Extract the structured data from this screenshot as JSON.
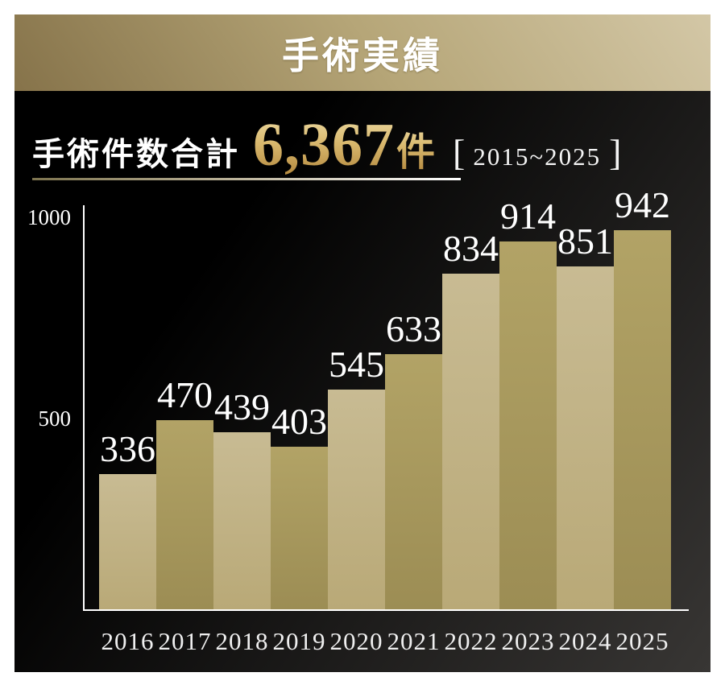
{
  "banner": {
    "title": "手術実績"
  },
  "summary": {
    "label": "手術件数合計",
    "total": "6,367",
    "unit": "件",
    "bracket_open": "[",
    "bracket_close": "]",
    "period": "2015~2025"
  },
  "chart_data": {
    "type": "bar",
    "title": "手術実績",
    "categories": [
      "2016",
      "2017",
      "2018",
      "2019",
      "2020",
      "2021",
      "2022",
      "2023",
      "2024",
      "2025"
    ],
    "values": [
      336,
      470,
      439,
      403,
      545,
      633,
      834,
      914,
      851,
      942
    ],
    "y_ticks": [
      1000,
      500
    ],
    "ylim": [
      0,
      1000
    ],
    "grid": false,
    "legend": false,
    "xlabel": "",
    "ylabel": "",
    "bar_label_color": "#ffffff",
    "bar_colors_alternating": [
      "#c3b589",
      "#a89a60"
    ]
  },
  "colors": {
    "banner_gold_dark": "#86734a",
    "banner_gold_light": "#d3c7a6",
    "panel_black": "#000000",
    "panel_gray": "#383634",
    "bar_light_top": "#c8bb93",
    "bar_light_bottom": "#b9a977",
    "bar_dark_top": "#b2a366",
    "bar_dark_bottom": "#9c8d54",
    "accent_gold_number": "#d2ab5e",
    "axis_white": "#ffffff"
  }
}
